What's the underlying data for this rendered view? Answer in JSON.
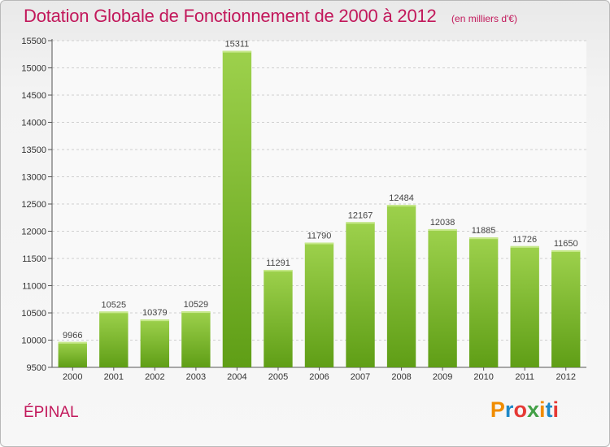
{
  "title": "Dotation Globale de Fonctionnement de 2000 à 2012",
  "subtitle": "(en milliers d'€)",
  "place": "ÉPINAL",
  "brand": {
    "letters": [
      "P",
      "r",
      "o",
      "x",
      "i",
      "t",
      "i"
    ],
    "colors": [
      "#f08c00",
      "#1e88c8",
      "#e53935",
      "#43a047",
      "#f08c00",
      "#1e88c8",
      "#e53935"
    ]
  },
  "colors": {
    "title": "#c2185b",
    "bar_light": "#9dd14c",
    "bar_dark": "#5f9e16"
  },
  "chart_data": {
    "type": "bar",
    "title": "Dotation Globale de Fonctionnement de 2000 à 2012",
    "subtitle": "(en milliers d'€)",
    "xlabel": "",
    "ylabel": "",
    "categories": [
      "2000",
      "2001",
      "2002",
      "2003",
      "2004",
      "2005",
      "2006",
      "2007",
      "2008",
      "2009",
      "2010",
      "2011",
      "2012"
    ],
    "values": [
      9966,
      10525,
      10379,
      10529,
      15311,
      11291,
      11790,
      12167,
      12484,
      12038,
      11885,
      11726,
      11650
    ],
    "ylim": [
      9500,
      15500
    ],
    "yticks": [
      9500,
      10000,
      10500,
      11000,
      11500,
      12000,
      12500,
      13000,
      13500,
      14000,
      14500,
      15000,
      15500
    ],
    "grid": true,
    "legend": "none"
  }
}
